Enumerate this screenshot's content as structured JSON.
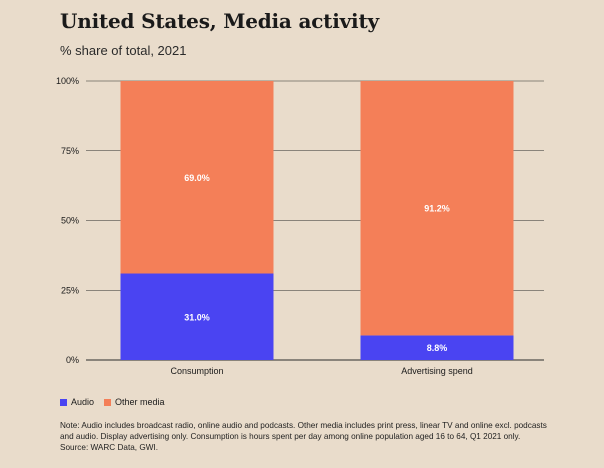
{
  "header": {
    "title": "United States, Media activity",
    "subtitle": "% share of total, 2021"
  },
  "colors": {
    "audio": "#4a44f2",
    "other": "#f47f58",
    "grid": "#2b2b2b",
    "background": "#e9dccb"
  },
  "chart_data": {
    "type": "bar",
    "stacked": true,
    "categories": [
      "Consumption",
      "Advertising spend"
    ],
    "series": [
      {
        "name": "Audio",
        "values": [
          31.0,
          8.8
        ],
        "labels": [
          "31.0%",
          "8.8%"
        ]
      },
      {
        "name": "Other media",
        "values": [
          69.0,
          91.2
        ],
        "labels": [
          "69.0%",
          "91.2%"
        ]
      }
    ],
    "ylim": [
      0,
      100
    ],
    "yticks": [
      0,
      25,
      50,
      75,
      100
    ],
    "ytick_labels": [
      "0%",
      "25%",
      "50%",
      "75%",
      "100%"
    ],
    "grid": true,
    "legend_position": "bottom-left"
  },
  "legend": {
    "items": [
      {
        "label": "Audio",
        "color": "#4a44f2"
      },
      {
        "label": "Other media",
        "color": "#f47f58"
      }
    ]
  },
  "footnote": {
    "note_line1": "Note: Audio includes broadcast radio, online audio and podcasts. Other media includes print press, linear TV and online excl. podcasts",
    "note_line2": "and audio. Display advertising only. Consumption is hours spent per day among online population aged 16 to 64, Q1 2021 only.",
    "source": "Source: WARC Data, GWI."
  }
}
